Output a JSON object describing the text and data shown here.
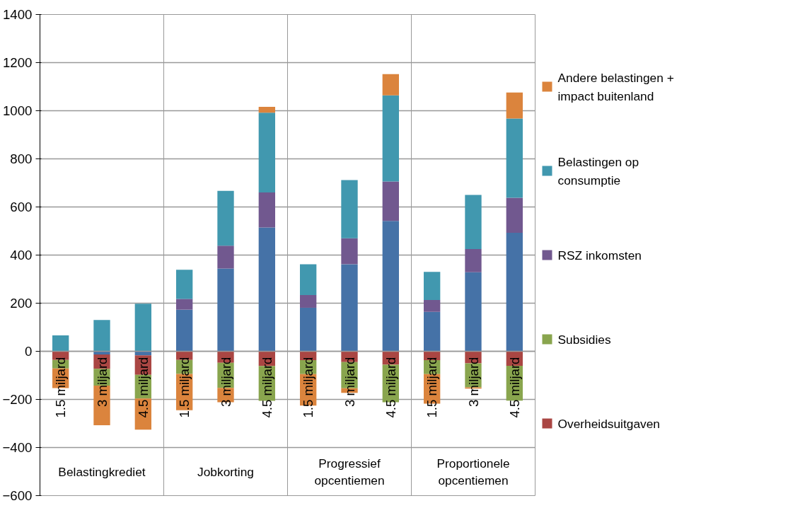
{
  "chart_data": {
    "type": "bar",
    "stacked": true,
    "categories": [
      "1.5 miljard",
      "3 miljard",
      "4.5 miljard",
      "1.5 miljard",
      "3 miljard",
      "4.5 miljard",
      "1.5 miljard",
      "3 miljard",
      "4.5 miljard",
      "1.5 miljard",
      "3 miljard",
      "4.5 miljard"
    ],
    "annotations": [
      "Belastingkrediet",
      "Jobkorting",
      "Progressief opcentiemen",
      "Proportionele opcentiemen"
    ],
    "series": [
      {
        "color": "#4572a7",
        "values": [
          0,
          -13,
          -17,
          173,
          344,
          515,
          181,
          362,
          542,
          164,
          329,
          493
        ]
      },
      {
        "name": "Overheidsuitgaven",
        "color": "#aa4643",
        "values": [
          -36,
          -60,
          -81,
          -36,
          -48,
          -61,
          -37,
          -45,
          -56,
          -37,
          -50,
          -60
        ]
      },
      {
        "name": "Subsidies",
        "color": "#89a54e",
        "values": [
          -35,
          -70,
          -98,
          -58,
          -104,
          -145,
          -58,
          -109,
          -156,
          -58,
          -100,
          -145
        ]
      },
      {
        "name": "RSZ inkomsten",
        "color": "#71588f",
        "values": [
          0,
          0,
          0,
          45,
          95,
          145,
          53,
          108,
          164,
          49,
          96,
          145
        ]
      },
      {
        "name": "Belastingen op consumptie",
        "color": "#4198af",
        "values": [
          66,
          130,
          198,
          121,
          228,
          332,
          128,
          242,
          358,
          117,
          225,
          330
        ]
      },
      {
        "name": "Andere belastingen + impact buitenland",
        "color": "#db843d",
        "values": [
          -82,
          -164,
          -130,
          -151,
          -60,
          24,
          -131,
          -19,
          88,
          -123,
          -5,
          108
        ]
      }
    ],
    "ylim": [
      -600,
      1400
    ],
    "yticks": [
      -600,
      -400,
      -200,
      0,
      200,
      400,
      600,
      800,
      1000,
      1200,
      1400
    ],
    "grid": "y",
    "legend": "right"
  }
}
